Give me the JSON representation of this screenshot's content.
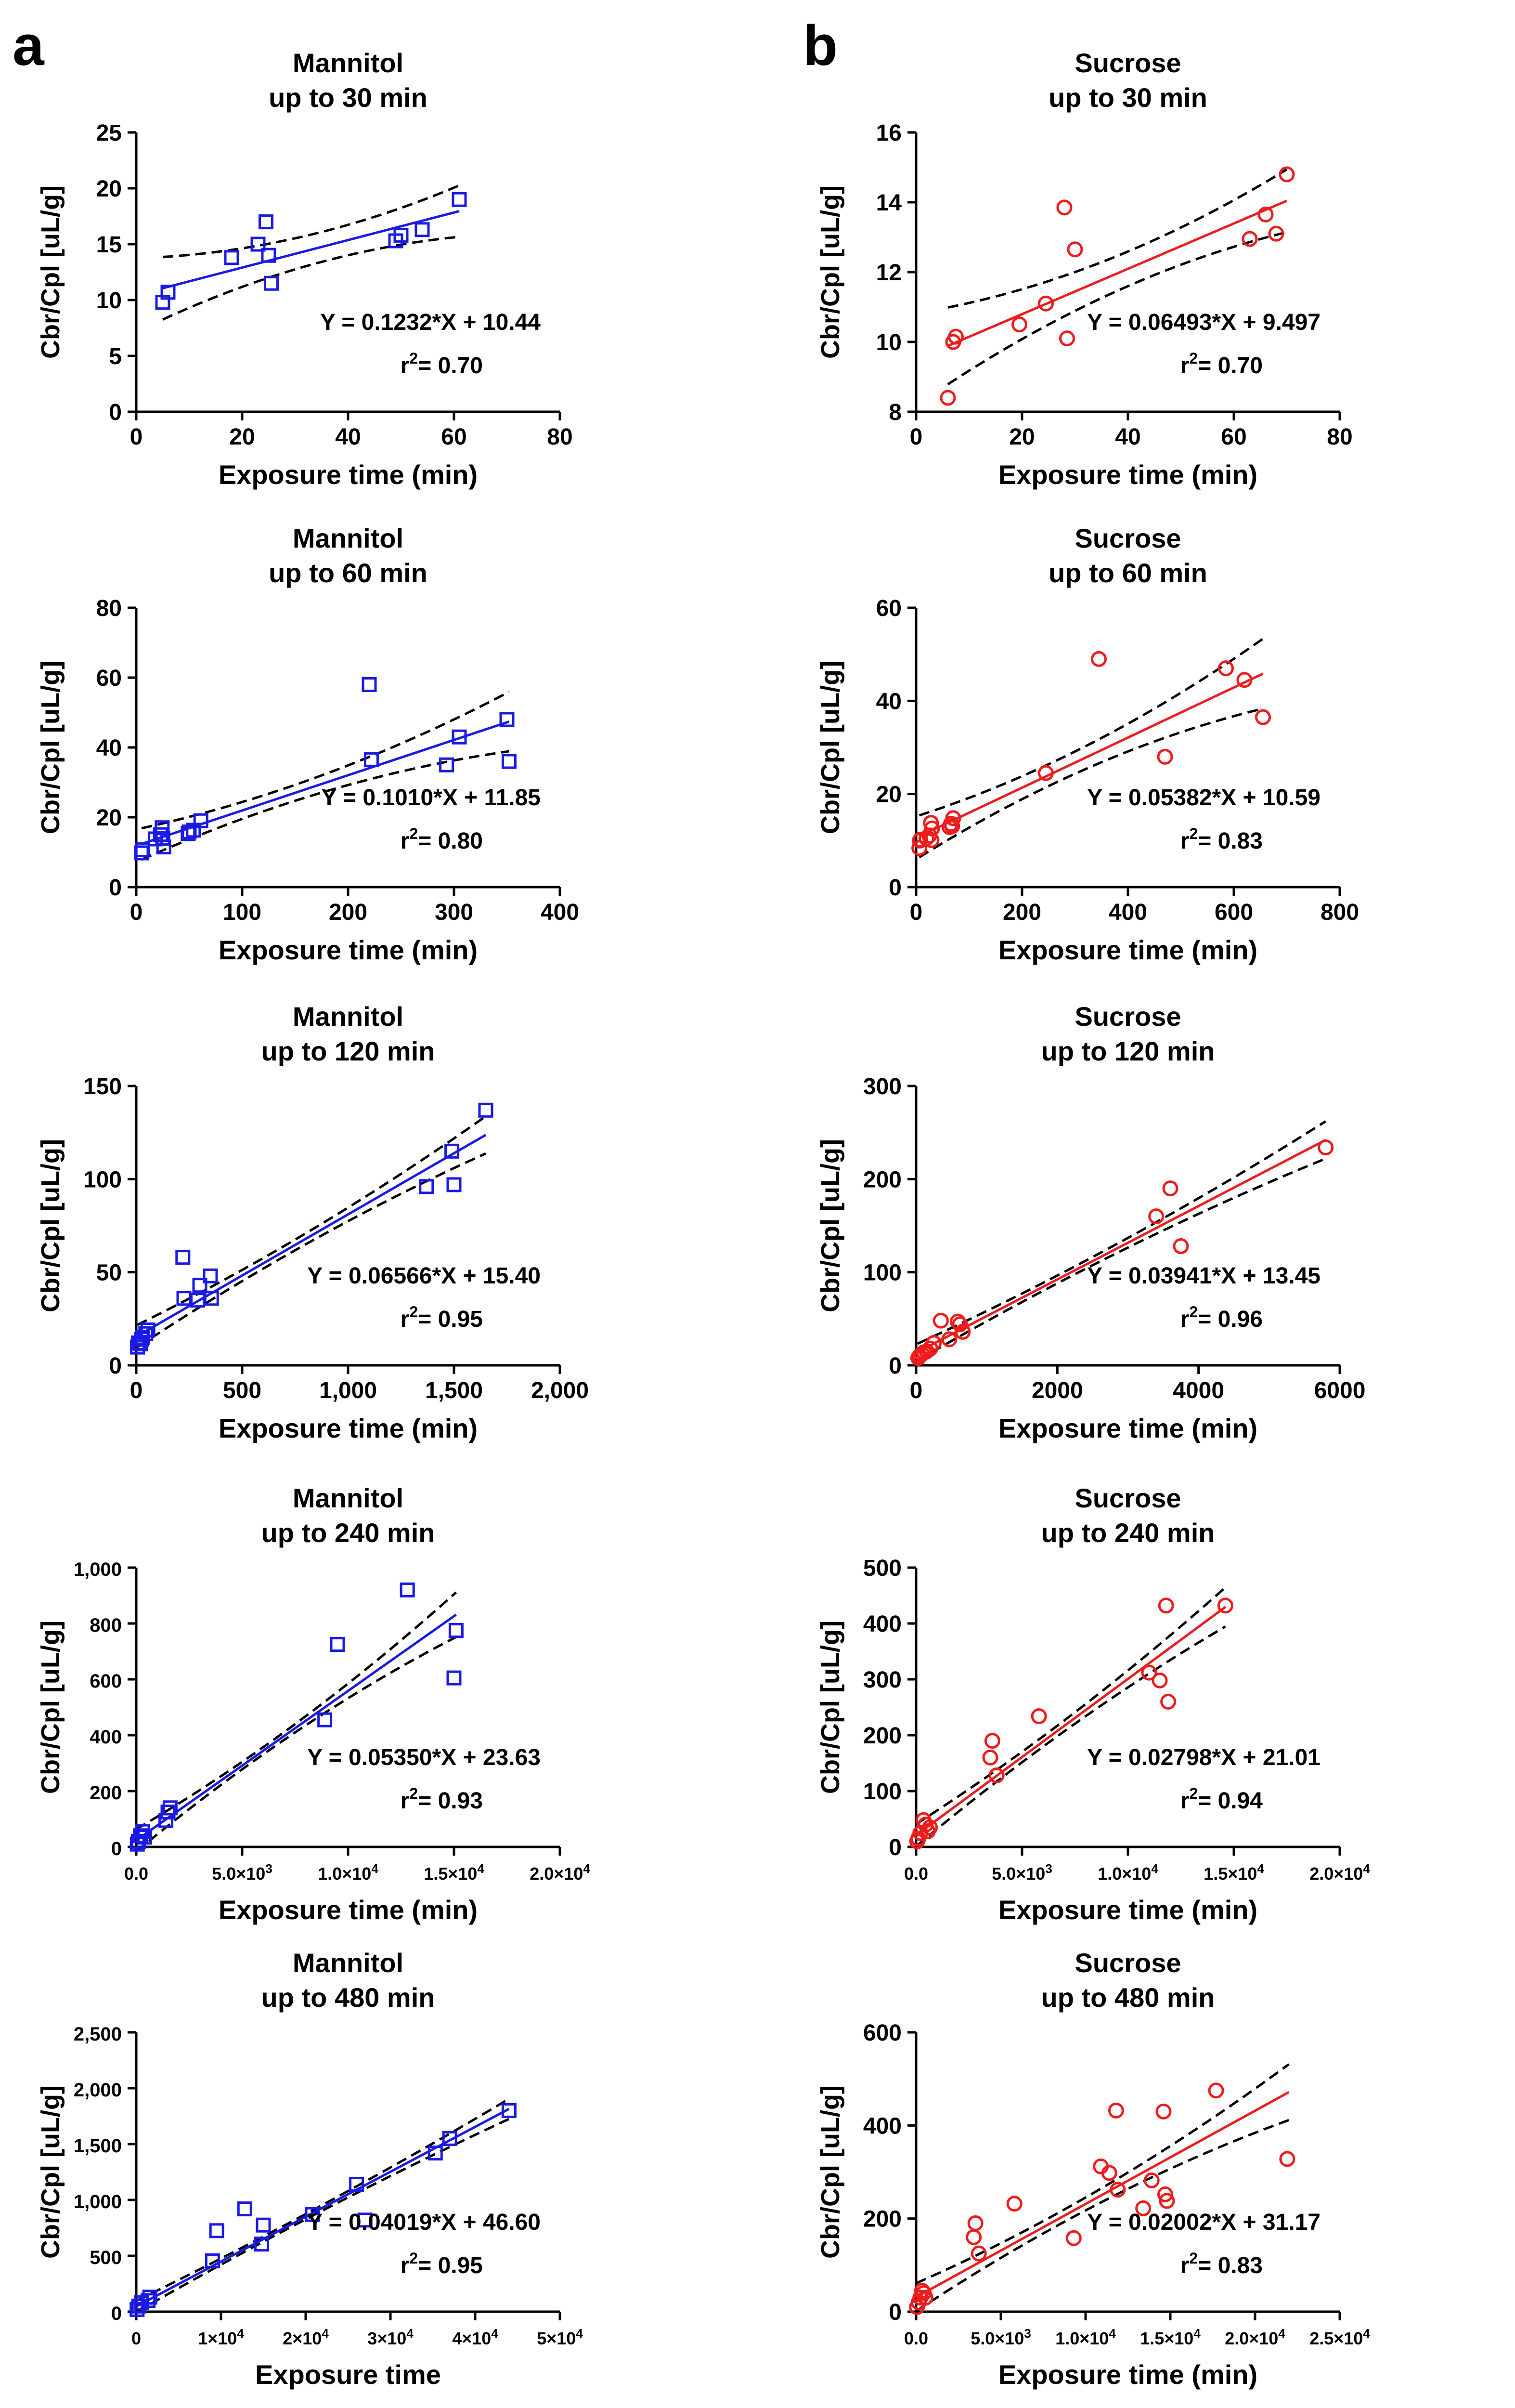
{
  "panel_labels": {
    "a": "a",
    "b": "b"
  },
  "colors": {
    "mannitol": "#1a1ae6",
    "sucrose": "#ee1c1c",
    "axis": "#000000",
    "ci": "#000000"
  },
  "chart_data": [
    {
      "id": "a1",
      "type": "scatter",
      "marker": "square",
      "color": "#1a1ae6",
      "title": [
        "Mannitol",
        "up to 30 min"
      ],
      "xlabel": "Exposure time (min)",
      "ylabel": "Cbr/Cpl [uL/g]",
      "xlim": [
        0,
        80
      ],
      "ylim": [
        0,
        25
      ],
      "xticks": [
        0,
        20,
        40,
        60,
        80
      ],
      "xtick_labels": [
        "0",
        "20",
        "40",
        "60",
        "80"
      ],
      "yticks": [
        0,
        5,
        10,
        15,
        20,
        25
      ],
      "ytick_labels": [
        "0",
        "5",
        "10",
        "15",
        "20",
        "25"
      ],
      "points": [
        [
          5,
          9.8
        ],
        [
          6,
          10.7
        ],
        [
          18,
          13.8
        ],
        [
          23,
          15
        ],
        [
          24.5,
          17
        ],
        [
          25,
          14
        ],
        [
          25.5,
          11.5
        ],
        [
          49,
          15.3
        ],
        [
          50,
          15.8
        ],
        [
          54,
          16.3
        ],
        [
          61,
          19
        ]
      ],
      "fit": {
        "slope": 0.1232,
        "intercept": 10.44,
        "x_range": [
          5,
          61
        ],
        "ci": [
          2.8,
          1.35,
          2.3
        ]
      },
      "equation": "Y = 0.1232*X + 10.44",
      "r2_prefix": "r",
      "r2_sup": "2",
      "r2_value": "= 0.70"
    },
    {
      "id": "b1",
      "type": "scatter",
      "marker": "circle",
      "color": "#ee1c1c",
      "title": [
        "Sucrose",
        "up to 30 min"
      ],
      "xlabel": "Exposure time (min)",
      "ylabel": "Cbr/Cpl [uL/g]",
      "xlim": [
        0,
        80
      ],
      "ylim": [
        8,
        16
      ],
      "xticks": [
        0,
        20,
        40,
        60,
        80
      ],
      "xtick_labels": [
        "0",
        "20",
        "40",
        "60",
        "80"
      ],
      "yticks": [
        8,
        10,
        12,
        14,
        16
      ],
      "ytick_labels": [
        "8",
        "10",
        "12",
        "14",
        "16"
      ],
      "points": [
        [
          6,
          8.4
        ],
        [
          7,
          10
        ],
        [
          7.5,
          10.15
        ],
        [
          19.5,
          10.5
        ],
        [
          24.5,
          11.1
        ],
        [
          28,
          13.85
        ],
        [
          28.5,
          10.1
        ],
        [
          30,
          12.65
        ],
        [
          63,
          12.95
        ],
        [
          66,
          13.65
        ],
        [
          68,
          13.1
        ],
        [
          70,
          14.8
        ]
      ],
      "fit": {
        "slope": 0.06493,
        "intercept": 9.497,
        "x_range": [
          6,
          70
        ],
        "ci": [
          1.1,
          0.5,
          0.9
        ]
      },
      "equation": "Y = 0.06493*X + 9.497",
      "r2_prefix": "r",
      "r2_sup": "2",
      "r2_value": "= 0.70"
    },
    {
      "id": "a2",
      "type": "scatter",
      "marker": "square",
      "color": "#1a1ae6",
      "title": [
        "Mannitol",
        "up to 60 min"
      ],
      "xlabel": "Exposure time (min)",
      "ylabel": "Cbr/Cpl [uL/g]",
      "xlim": [
        0,
        400
      ],
      "ylim": [
        0,
        80
      ],
      "xticks": [
        0,
        100,
        200,
        300,
        400
      ],
      "xtick_labels": [
        "0",
        "100",
        "200",
        "300",
        "400"
      ],
      "yticks": [
        0,
        20,
        40,
        60,
        80
      ],
      "ytick_labels": [
        "0",
        "20",
        "40",
        "60",
        "80"
      ],
      "points": [
        [
          5,
          9.8
        ],
        [
          6,
          10.7
        ],
        [
          18,
          13.8
        ],
        [
          23,
          15
        ],
        [
          24.5,
          17
        ],
        [
          25,
          14
        ],
        [
          26,
          11.5
        ],
        [
          49,
          15.3
        ],
        [
          50,
          15.8
        ],
        [
          54,
          16.3
        ],
        [
          61,
          19
        ],
        [
          220,
          58
        ],
        [
          222,
          36.5
        ],
        [
          293,
          35
        ],
        [
          305,
          43
        ],
        [
          350,
          48
        ],
        [
          352,
          36
        ]
      ],
      "fit": {
        "slope": 0.101,
        "intercept": 11.85,
        "x_range": [
          5,
          352
        ],
        "ci": [
          4.5,
          2.5,
          8.5
        ]
      },
      "equation": "Y = 0.1010*X + 11.85",
      "r2_prefix": "r",
      "r2_sup": "2",
      "r2_value": "= 0.80"
    },
    {
      "id": "b2",
      "type": "scatter",
      "marker": "circle",
      "color": "#ee1c1c",
      "title": [
        "Sucrose",
        "up to 60 min"
      ],
      "xlabel": "Exposure time (min)",
      "ylabel": "Cbr/Cpl [uL/g]",
      "xlim": [
        0,
        800
      ],
      "ylim": [
        0,
        60
      ],
      "xticks": [
        0,
        200,
        400,
        600,
        800
      ],
      "xtick_labels": [
        "0",
        "200",
        "400",
        "600",
        "800"
      ],
      "yticks": [
        0,
        20,
        40,
        60
      ],
      "ytick_labels": [
        "0",
        "20",
        "40",
        "60"
      ],
      "points": [
        [
          6,
          8.4
        ],
        [
          7,
          10
        ],
        [
          8,
          10.2
        ],
        [
          19.5,
          10.5
        ],
        [
          25,
          11.1
        ],
        [
          28,
          13.8
        ],
        [
          29,
          10.1
        ],
        [
          30,
          12.6
        ],
        [
          63,
          12.9
        ],
        [
          66,
          13.6
        ],
        [
          68,
          13.1
        ],
        [
          70,
          14.8
        ],
        [
          245,
          24.5
        ],
        [
          345,
          49
        ],
        [
          470,
          28
        ],
        [
          585,
          47
        ],
        [
          620,
          44.5
        ],
        [
          655,
          36.5
        ]
      ],
      "fit": {
        "slope": 0.05382,
        "intercept": 10.59,
        "x_range": [
          6,
          655
        ],
        "ci": [
          4.5,
          2.5,
          7.5
        ]
      },
      "equation": "Y = 0.05382*X + 10.59",
      "r2_prefix": "r",
      "r2_sup": "2",
      "r2_value": "= 0.83"
    },
    {
      "id": "a3",
      "type": "scatter",
      "marker": "square",
      "color": "#1a1ae6",
      "title": [
        "Mannitol",
        "up to 120 min"
      ],
      "xlabel": "Exposure time (min)",
      "ylabel": "Cbr/Cpl [uL/g]",
      "xlim": [
        0,
        2000
      ],
      "ylim": [
        0,
        150
      ],
      "xticks": [
        0,
        500,
        1000,
        1500,
        2000
      ],
      "xtick_labels": [
        "0",
        "500",
        "1,000",
        "1,500",
        "2,000"
      ],
      "yticks": [
        0,
        50,
        100,
        150
      ],
      "ytick_labels": [
        "0",
        "50",
        "100",
        "150"
      ],
      "points": [
        [
          6,
          9.8
        ],
        [
          10,
          12
        ],
        [
          20,
          11.5
        ],
        [
          25,
          14
        ],
        [
          30,
          15
        ],
        [
          45,
          17
        ],
        [
          55,
          19
        ],
        [
          220,
          58
        ],
        [
          225,
          36
        ],
        [
          290,
          35
        ],
        [
          300,
          43
        ],
        [
          350,
          48
        ],
        [
          355,
          36
        ],
        [
          1370,
          96
        ],
        [
          1490,
          115
        ],
        [
          1500,
          97
        ],
        [
          1650,
          137
        ]
      ],
      "fit": {
        "slope": 0.06566,
        "intercept": 15.4,
        "x_range": [
          5,
          1650
        ],
        "ci": [
          6,
          3,
          10
        ]
      },
      "equation": "Y = 0.06566*X + 15.40",
      "r2_prefix": "r",
      "r2_sup": "2",
      "r2_value": "= 0.95"
    },
    {
      "id": "b3",
      "type": "scatter",
      "marker": "circle",
      "color": "#ee1c1c",
      "title": [
        "Sucrose",
        "up to 120 min"
      ],
      "xlabel": "Exposure time (min)",
      "ylabel": "Cbr/Cpl [uL/g]",
      "xlim": [
        0,
        6000
      ],
      "ylim": [
        0,
        300
      ],
      "xticks": [
        0,
        2000,
        4000,
        6000
      ],
      "xtick_labels": [
        "0",
        "2000",
        "4000",
        "6000"
      ],
      "yticks": [
        0,
        100,
        200,
        300
      ],
      "ytick_labels": [
        "0",
        "100",
        "200",
        "300"
      ],
      "points": [
        [
          30,
          8
        ],
        [
          50,
          10
        ],
        [
          80,
          12
        ],
        [
          110,
          14
        ],
        [
          150,
          15
        ],
        [
          200,
          18
        ],
        [
          250,
          24
        ],
        [
          350,
          48
        ],
        [
          470,
          28
        ],
        [
          590,
          47
        ],
        [
          620,
          44
        ],
        [
          660,
          36
        ],
        [
          3400,
          160
        ],
        [
          3600,
          190
        ],
        [
          3750,
          128
        ],
        [
          5800,
          234
        ]
      ],
      "fit": {
        "slope": 0.03941,
        "intercept": 13.45,
        "x_range": [
          20,
          5800
        ],
        "ci": [
          9,
          5,
          20
        ]
      },
      "equation": "Y = 0.03941*X + 13.45",
      "r2_prefix": "r",
      "r2_sup": "2",
      "r2_value": "= 0.96"
    },
    {
      "id": "a4",
      "type": "scatter",
      "marker": "square",
      "color": "#1a1ae6",
      "title": [
        "Mannitol",
        "up to 240 min"
      ],
      "xlabel": "Exposure time (min)",
      "ylabel": "Cbr/Cpl [uL/g]",
      "xlim": [
        0,
        20000
      ],
      "ylim": [
        0,
        1000
      ],
      "xticks": [
        0,
        5000,
        10000,
        15000,
        20000
      ],
      "xtick_labels": [
        "0.0",
        "5.0×10",
        "1.0×10",
        "1.5×10",
        "2.0×10"
      ],
      "xtick_sups": [
        "",
        "3",
        "4",
        "4",
        "4"
      ],
      "yticks": [
        0,
        200,
        400,
        600,
        800,
        1000
      ],
      "ytick_labels": [
        "0",
        "200",
        "400",
        "600",
        "800",
        "1,000"
      ],
      "points": [
        [
          50,
          10
        ],
        [
          100,
          20
        ],
        [
          200,
          40
        ],
        [
          300,
          55
        ],
        [
          400,
          35
        ],
        [
          1400,
          95
        ],
        [
          1500,
          125
        ],
        [
          1600,
          140
        ],
        [
          8900,
          455
        ],
        [
          9500,
          725
        ],
        [
          12800,
          920
        ],
        [
          15000,
          605
        ],
        [
          15100,
          775
        ]
      ],
      "fit": {
        "slope": 0.0535,
        "intercept": 23.63,
        "x_range": [
          0,
          15100
        ],
        "ci": [
          40,
          15,
          80
        ]
      },
      "equation": "Y = 0.05350*X + 23.63",
      "r2_prefix": "r",
      "r2_sup": "2",
      "r2_value": "= 0.93"
    },
    {
      "id": "b4",
      "type": "scatter",
      "marker": "circle",
      "color": "#ee1c1c",
      "title": [
        "Sucrose",
        "up to 240 min"
      ],
      "xlabel": "Exposure time (min)",
      "ylabel": "Cbr/Cpl [uL/g]",
      "xlim": [
        0,
        20000
      ],
      "ylim": [
        0,
        500
      ],
      "xticks": [
        0,
        5000,
        10000,
        15000,
        20000
      ],
      "xtick_labels": [
        "0.0",
        "5.0×10",
        "1.0×10",
        "1.5×10",
        "2.0×10"
      ],
      "xtick_sups": [
        "",
        "3",
        "4",
        "4",
        "4"
      ],
      "yticks": [
        0,
        100,
        200,
        300,
        400,
        500
      ],
      "ytick_labels": [
        "0",
        "100",
        "200",
        "300",
        "400",
        "500"
      ],
      "points": [
        [
          50,
          10
        ],
        [
          100,
          15
        ],
        [
          200,
          25
        ],
        [
          350,
          48
        ],
        [
          450,
          40
        ],
        [
          550,
          28
        ],
        [
          650,
          35
        ],
        [
          3500,
          160
        ],
        [
          3600,
          190
        ],
        [
          3800,
          128
        ],
        [
          5800,
          234
        ],
        [
          11000,
          312
        ],
        [
          11500,
          298
        ],
        [
          11800,
          432
        ],
        [
          11900,
          260
        ],
        [
          14600,
          432
        ]
      ],
      "fit": {
        "slope": 0.02798,
        "intercept": 21.01,
        "x_range": [
          0,
          14600
        ],
        "ci": [
          20,
          10,
          35
        ]
      },
      "equation": "Y = 0.02798*X + 21.01",
      "r2_prefix": "r",
      "r2_sup": "2",
      "r2_value": "= 0.94"
    },
    {
      "id": "a5",
      "type": "scatter",
      "marker": "square",
      "color": "#1a1ae6",
      "title": [
        "Mannitol",
        "up to 480 min"
      ],
      "xlabel": "Exposure time",
      "ylabel": "Cbr/Cpl [uL/g]",
      "xlim": [
        0,
        50000
      ],
      "ylim": [
        0,
        2500
      ],
      "xticks": [
        0,
        10000,
        20000,
        30000,
        40000,
        50000
      ],
      "xtick_labels": [
        "0",
        "1×10",
        "2×10",
        "3×10",
        "4×10",
        "5×10"
      ],
      "xtick_sups": [
        "",
        "4",
        "4",
        "4",
        "4",
        "4"
      ],
      "yticks": [
        0,
        500,
        1000,
        1500,
        2000,
        2500
      ],
      "ytick_labels": [
        "0",
        "500",
        "1,000",
        "1,500",
        "2,000",
        "2,500"
      ],
      "points": [
        [
          100,
          20
        ],
        [
          300,
          50
        ],
        [
          600,
          80
        ],
        [
          1400,
          100
        ],
        [
          1600,
          130
        ],
        [
          9000,
          455
        ],
        [
          9500,
          725
        ],
        [
          12800,
          920
        ],
        [
          14800,
          605
        ],
        [
          15000,
          775
        ],
        [
          20800,
          870
        ],
        [
          26000,
          1140
        ],
        [
          27000,
          820
        ],
        [
          35300,
          1420
        ],
        [
          37000,
          1550
        ],
        [
          44000,
          1800
        ]
      ],
      "fit": {
        "slope": 0.04019,
        "intercept": 46.6,
        "x_range": [
          0,
          44000
        ],
        "ci": [
          50,
          25,
          90
        ]
      },
      "equation": "Y = 0.04019*X + 46.60",
      "r2_prefix": "r",
      "r2_sup": "2",
      "r2_value": "= 0.95"
    },
    {
      "id": "b5",
      "type": "scatter",
      "marker": "circle",
      "color": "#ee1c1c",
      "title": [
        "Sucrose",
        "up to 480 min"
      ],
      "xlabel": "Exposure time (min)",
      "ylabel": "Cbr/Cpl [uL/g]",
      "xlim": [
        0,
        25000
      ],
      "ylim": [
        0,
        600
      ],
      "xticks": [
        0,
        5000,
        10000,
        15000,
        20000,
        25000
      ],
      "xtick_labels": [
        "0.0",
        "5.0×10",
        "1.0×10",
        "1.5×10",
        "2.0×10",
        "2.5×10"
      ],
      "xtick_sups": [
        "",
        "3",
        "4",
        "4",
        "4",
        "4"
      ],
      "yticks": [
        0,
        200,
        400,
        600
      ],
      "ytick_labels": [
        "0",
        "200",
        "400",
        "600"
      ],
      "points": [
        [
          50,
          10
        ],
        [
          150,
          20
        ],
        [
          250,
          30
        ],
        [
          350,
          45
        ],
        [
          450,
          40
        ],
        [
          550,
          30
        ],
        [
          3400,
          160
        ],
        [
          3500,
          190
        ],
        [
          3700,
          125
        ],
        [
          5800,
          232
        ],
        [
          9300,
          158
        ],
        [
          10900,
          312
        ],
        [
          11400,
          298
        ],
        [
          11800,
          432
        ],
        [
          11900,
          262
        ],
        [
          13400,
          222
        ],
        [
          13900,
          282
        ],
        [
          14600,
          430
        ],
        [
          14700,
          252
        ],
        [
          14800,
          238
        ],
        [
          17700,
          475
        ],
        [
          21900,
          328
        ]
      ],
      "fit": {
        "slope": 0.02002,
        "intercept": 31.17,
        "x_range": [
          0,
          22000
        ],
        "ci": [
          30,
          15,
          60
        ]
      },
      "equation": "Y = 0.02002*X + 31.17",
      "r2_prefix": "r",
      "r2_sup": "2",
      "r2_value": "= 0.83"
    }
  ]
}
